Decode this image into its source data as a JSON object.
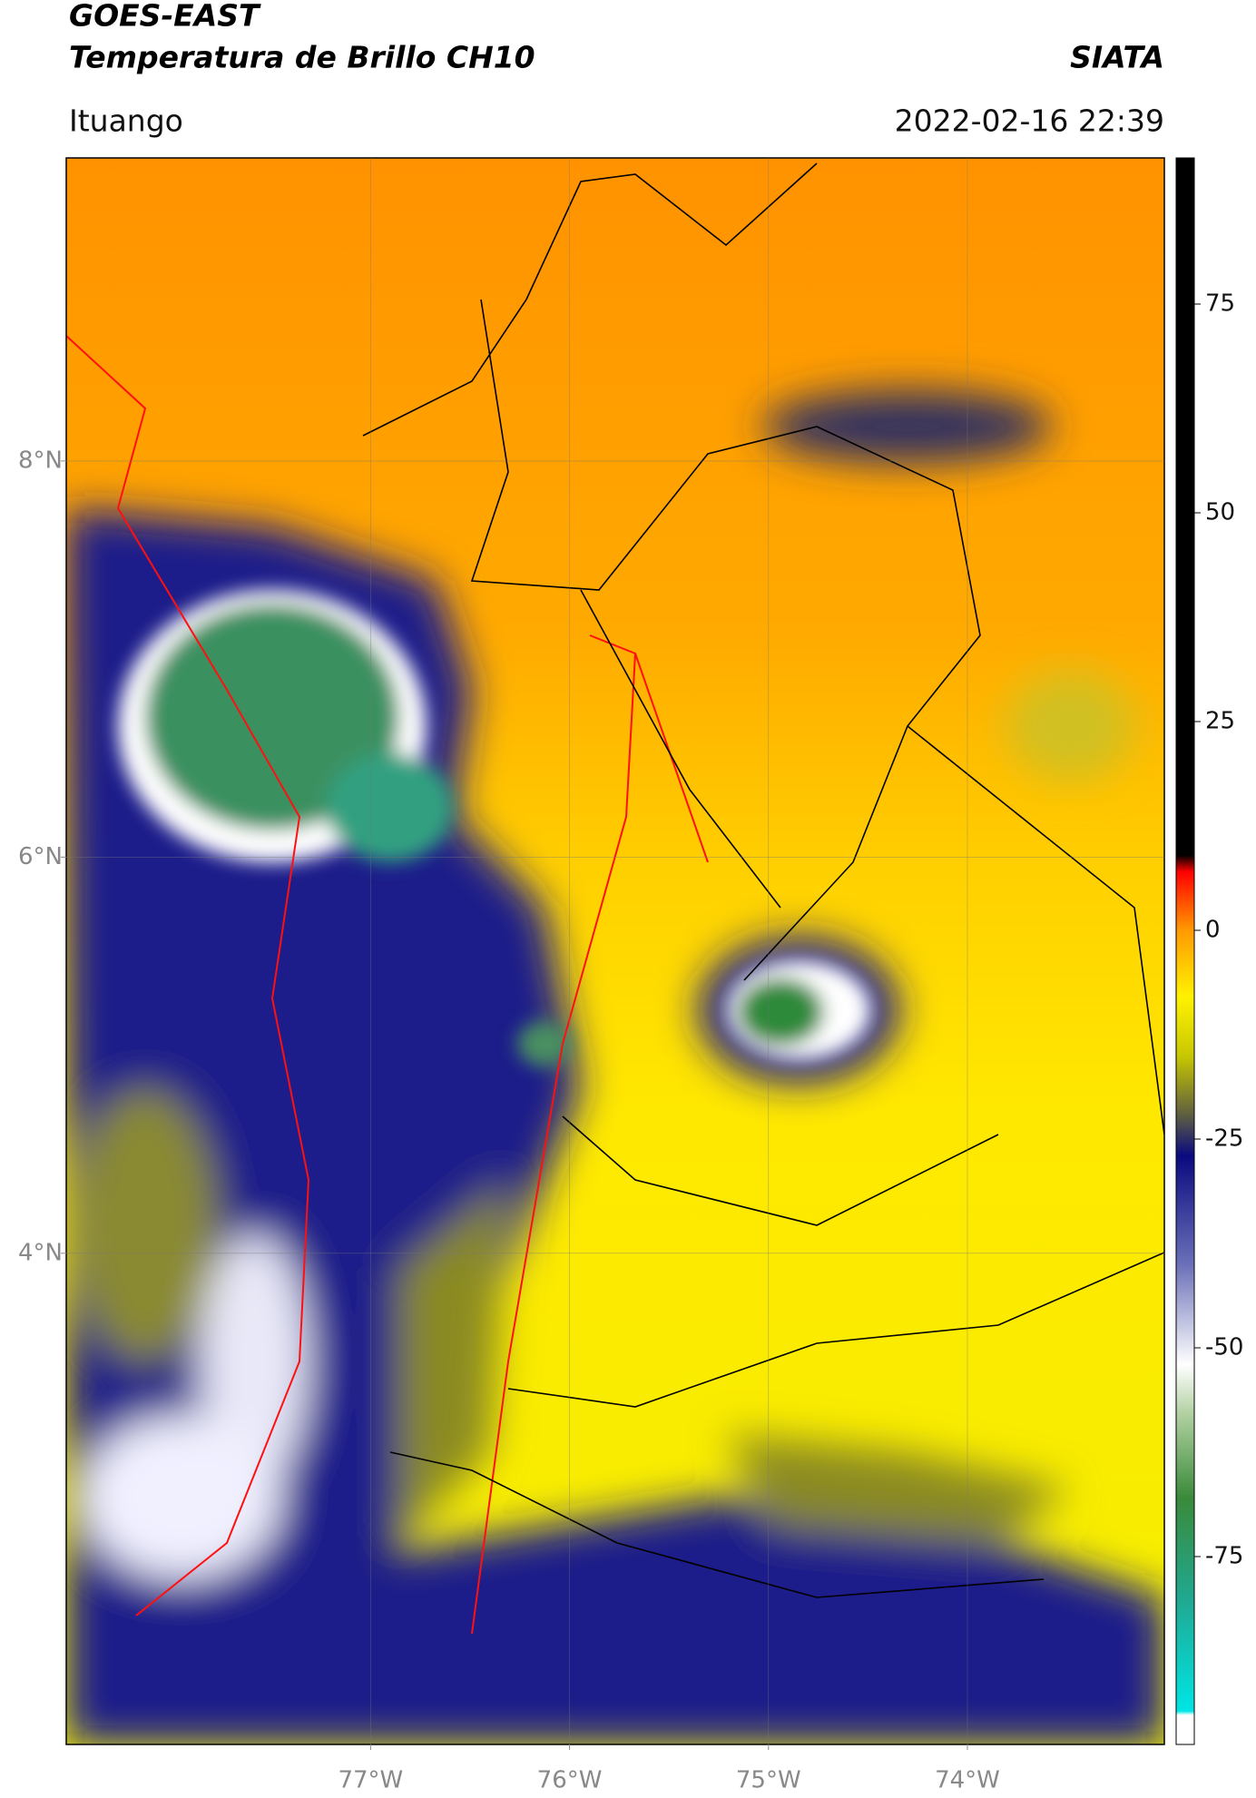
{
  "header": {
    "title": "GOES-EAST",
    "subtitle": "Temperatura de Brillo CH10",
    "org": "SIATA",
    "location": "Ituango",
    "datetime": "2022-02-16 22:39"
  },
  "map": {
    "lon_range": [
      -78.53,
      -73.01
    ],
    "lat_range": [
      1.52,
      9.53
    ],
    "grid": true,
    "lon_ticks": [
      {
        "value": -77,
        "label": "77°W"
      },
      {
        "value": -76,
        "label": "76°W"
      },
      {
        "value": -75,
        "label": "75°W"
      },
      {
        "value": -74,
        "label": "74°W"
      }
    ],
    "lat_ticks": [
      {
        "value": 8,
        "label": "8°N"
      },
      {
        "value": 6,
        "label": "6°N"
      },
      {
        "value": 4,
        "label": "4°N"
      }
    ]
  },
  "colorbar": {
    "range": [
      -97.5,
      92.5
    ],
    "ticks": [
      75,
      50,
      25,
      0,
      -25,
      -50,
      -75
    ],
    "stops": [
      {
        "value": -97.5,
        "color": "#ffffff"
      },
      {
        "value": -94,
        "color": "#ffffff"
      },
      {
        "value": -93.5,
        "color": "#00e5e5"
      },
      {
        "value": -80,
        "color": "#20a890"
      },
      {
        "value": -68,
        "color": "#3a8a3a"
      },
      {
        "value": -58,
        "color": "#b0d0a0"
      },
      {
        "value": -52,
        "color": "#ffffff"
      },
      {
        "value": -40,
        "color": "#6a70b8"
      },
      {
        "value": -27,
        "color": "#0a0a80"
      },
      {
        "value": -22,
        "color": "#606040"
      },
      {
        "value": -15,
        "color": "#c8c800"
      },
      {
        "value": -8,
        "color": "#fff200"
      },
      {
        "value": 0,
        "color": "#ff9a00"
      },
      {
        "value": 7,
        "color": "#ff0000"
      },
      {
        "value": 9,
        "color": "#000000"
      },
      {
        "value": 92.5,
        "color": "#000000"
      }
    ]
  }
}
